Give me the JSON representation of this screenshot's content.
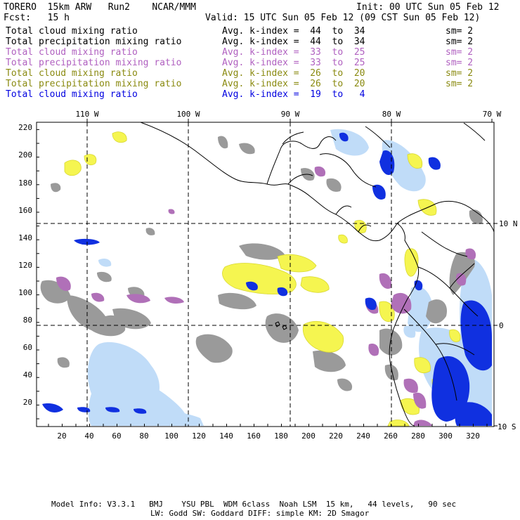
{
  "header": {
    "line1_left": "TORERO  15km ARW   Run2    NCAR/MMM",
    "line1_right": "Init: 00 UTC Sun 05 Feb 12",
    "line2_left": "Fcst:   15 h",
    "line2_right": "Valid: 15 UTC Sun 05 Feb 12 (09 CST Sun 05 Feb 12)"
  },
  "legend": [
    {
      "field": "Total cloud mixing ratio",
      "index": "Avg. k-index =  44  to  34",
      "sm": "sm= 2",
      "color": "#000000"
    },
    {
      "field": "Total precipitation mixing ratio",
      "index": "Avg. k-index =  44  to  34",
      "sm": "sm= 2",
      "color": "#000000"
    },
    {
      "field": "Total cloud mixing ratio",
      "index": "Avg. k-index =  33  to  25",
      "sm": "sm= 2",
      "color": "#b060c0"
    },
    {
      "field": "Total precipitation mixing ratio",
      "index": "Avg. k-index =  33  to  25",
      "sm": "sm= 2",
      "color": "#b060c0"
    },
    {
      "field": "Total cloud mixing ratio",
      "index": "Avg. k-index =  26  to  20",
      "sm": "sm= 2",
      "color": "#8a8a10"
    },
    {
      "field": "Total precipitation mixing ratio",
      "index": "Avg. k-index =  26  to  20",
      "sm": "sm= 2",
      "color": "#8a8a10"
    },
    {
      "field": "Total cloud mixing ratio",
      "index": "Avg. k-index =  19  to   4",
      "sm": "",
      "color": "#0000e0"
    }
  ],
  "axes": {
    "top_labels": [
      "110 W",
      "100 W",
      "90 W",
      "80 W",
      "70 W"
    ],
    "right_labels": [
      "10 N",
      "0",
      "10 S"
    ],
    "left_labels": [
      "220",
      "200",
      "180",
      "160",
      "140",
      "120",
      "100",
      "80",
      "60",
      "40",
      "20"
    ],
    "bottom_labels": [
      "20",
      "40",
      "60",
      "80",
      "100",
      "120",
      "140",
      "160",
      "180",
      "200",
      "220",
      "240",
      "260",
      "280",
      "300",
      "320"
    ]
  },
  "footer": {
    "line1": "Model Info: V3.3.1   BMJ    YSU PBL  WDM 6class  Noah LSM  15 km,   44 levels,   90 sec",
    "line2": "LW: Godd SW: Goddard DIFF: simple KM: 2D Smagor"
  },
  "colors": {
    "gray_cloud": "#9a9a9a",
    "purple_cloud": "#b070b8",
    "yellow_cloud": "#f5f550",
    "blue_cloud": "#1030e0",
    "lightblue_cloud": "#c0dcf8"
  }
}
